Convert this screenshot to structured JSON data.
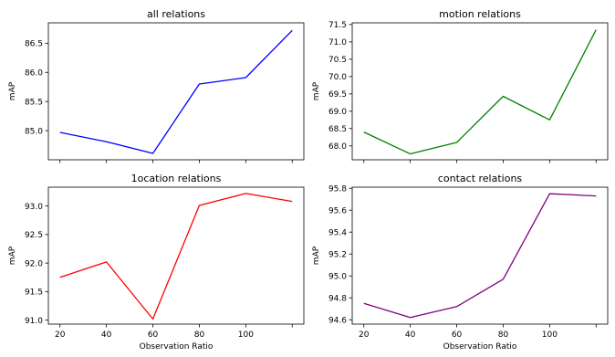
{
  "chart_data": [
    {
      "type": "line",
      "title": "all relations",
      "xlabel": "",
      "ylabel": "mAP",
      "x": [
        20,
        40,
        60,
        80,
        100,
        120
      ],
      "series": [
        {
          "values": [
            84.97,
            84.81,
            84.61,
            85.8,
            85.91,
            86.72
          ]
        }
      ],
      "color": "#0000ff",
      "xlim": [
        15,
        125
      ],
      "ylim": [
        84.5,
        86.85
      ],
      "xticks": [
        20,
        40,
        60,
        80,
        100,
        120
      ],
      "xtick_labels": [],
      "yticks": [
        "85.0",
        "85.5",
        "86.0",
        "86.5"
      ],
      "grid": false
    },
    {
      "type": "line",
      "title": "motion relations",
      "xlabel": "",
      "ylabel": "mAP",
      "x": [
        20,
        40,
        60,
        80,
        100,
        120
      ],
      "series": [
        {
          "values": [
            68.4,
            67.77,
            68.1,
            69.43,
            68.75,
            71.35
          ]
        }
      ],
      "color": "#008000",
      "xlim": [
        15,
        125
      ],
      "ylim": [
        67.6,
        71.55
      ],
      "xticks": [
        20,
        40,
        60,
        80,
        100,
        120
      ],
      "xtick_labels": [],
      "yticks": [
        "68.0",
        "68.5",
        "69.0",
        "69.5",
        "70.0",
        "70.5",
        "71.0",
        "71.5"
      ],
      "grid": false
    },
    {
      "type": "line",
      "title": "1ocation relations",
      "xlabel": "Observation Ratio",
      "ylabel": "mAP",
      "x": [
        20,
        40,
        60,
        80,
        100,
        120
      ],
      "series": [
        {
          "values": [
            91.75,
            92.02,
            91.02,
            93.01,
            93.22,
            93.08
          ]
        }
      ],
      "color": "#ff0000",
      "xlim": [
        15,
        125
      ],
      "ylim": [
        90.93,
        93.33
      ],
      "xticks": [
        20,
        40,
        60,
        80,
        100,
        120
      ],
      "xtick_labels": [
        "20",
        "40",
        "60",
        "80",
        "100",
        ""
      ],
      "yticks": [
        "91.0",
        "91.5",
        "92.0",
        "92.5",
        "93.0"
      ],
      "grid": false
    },
    {
      "type": "line",
      "title": "contact relations",
      "xlabel": "Observation Ratio",
      "ylabel": "mAP",
      "x": [
        20,
        40,
        60,
        80,
        100,
        120
      ],
      "series": [
        {
          "values": [
            94.75,
            94.62,
            94.72,
            94.97,
            95.75,
            95.73
          ]
        }
      ],
      "color": "#800080",
      "xlim": [
        15,
        125
      ],
      "ylim": [
        94.56,
        95.81
      ],
      "xticks": [
        20,
        40,
        60,
        80,
        100,
        120
      ],
      "xtick_labels": [
        "20",
        "40",
        "60",
        "80",
        "100",
        ""
      ],
      "yticks": [
        "94.6",
        "94.8",
        "95.0",
        "95.2",
        "95.4",
        "95.6",
        "95.8"
      ],
      "grid": false
    }
  ]
}
